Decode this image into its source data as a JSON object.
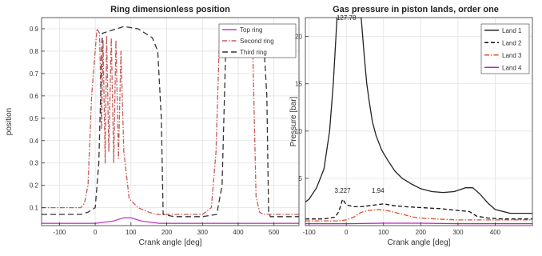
{
  "chart_data": [
    {
      "type": "line",
      "title": "Ring dimensionless position",
      "xlabel": "Crank angle [deg]",
      "ylabel": "position",
      "xlim": [
        -150,
        570
      ],
      "ylim": [
        0.02,
        0.95
      ],
      "xticks": [
        -100,
        0,
        100,
        200,
        300,
        400,
        500
      ],
      "yticks": [
        0.1,
        0.2,
        0.3,
        0.4,
        0.5,
        0.6,
        0.7,
        0.8,
        0.9
      ],
      "grid": true,
      "legend": "top-right",
      "series": [
        {
          "name": "Top ring",
          "color": "#c040c0",
          "dash": "",
          "x": [
            -150,
            0,
            50,
            80,
            100,
            130,
            180,
            360,
            420,
            570
          ],
          "y": [
            0.03,
            0.03,
            0.04,
            0.055,
            0.055,
            0.04,
            0.03,
            0.03,
            0.03,
            0.03
          ]
        },
        {
          "name": "Second ring",
          "color": "#c85a5a",
          "dash": "6 2 1.5 2",
          "x": [
            -150,
            -40,
            -30,
            -20,
            -10,
            5,
            12,
            18,
            22,
            28,
            32,
            38,
            45,
            52,
            58,
            65,
            72,
            80,
            95,
            120,
            150,
            170,
            200,
            240,
            300,
            325,
            338,
            348,
            380,
            410,
            440,
            445,
            450,
            460,
            470,
            500,
            550,
            570
          ],
          "y": [
            0.1,
            0.1,
            0.12,
            0.2,
            0.6,
            0.9,
            0.88,
            0.45,
            0.85,
            0.3,
            0.87,
            0.35,
            0.86,
            0.3,
            0.85,
            0.32,
            0.8,
            0.35,
            0.14,
            0.1,
            0.08,
            0.07,
            0.07,
            0.07,
            0.07,
            0.1,
            0.35,
            0.88,
            0.9,
            0.89,
            0.86,
            0.5,
            0.15,
            0.08,
            0.07,
            0.07,
            0.07,
            0.07
          ]
        },
        {
          "name": "Third ring",
          "color": "#333333",
          "dash": "7 4",
          "x": [
            -150,
            -40,
            -20,
            0,
            10,
            20,
            80,
            120,
            160,
            175,
            185,
            190,
            220,
            300,
            340,
            355,
            365,
            370,
            380,
            420,
            450,
            470,
            480,
            485,
            490,
            520,
            570
          ],
          "y": [
            0.07,
            0.07,
            0.08,
            0.1,
            0.3,
            0.88,
            0.91,
            0.9,
            0.86,
            0.8,
            0.5,
            0.07,
            0.06,
            0.06,
            0.07,
            0.2,
            0.8,
            0.91,
            0.92,
            0.91,
            0.9,
            0.88,
            0.6,
            0.08,
            0.06,
            0.06,
            0.06
          ]
        }
      ]
    },
    {
      "type": "line",
      "title": "Gas pressure in piston lands, order one",
      "xlabel": "Crank angle [deg]",
      "ylabel": "Pressure [bar]",
      "xlim": [
        -110,
        500
      ],
      "ylim": [
        0,
        22
      ],
      "xticks": [
        -100,
        0,
        100,
        200,
        300,
        400
      ],
      "yticks": [
        5,
        10,
        15,
        20
      ],
      "grid": true,
      "legend": "top-right",
      "annotations": [
        {
          "text": "127.78",
          "x": 0,
          "y": 21.5
        },
        {
          "text": "3.227",
          "x": -10,
          "y": 3.2
        },
        {
          "text": "1.94",
          "x": 85,
          "y": 3.2
        }
      ],
      "series": [
        {
          "name": "Land 1",
          "color": "#222222",
          "dash": "",
          "x": [
            -110,
            -100,
            -80,
            -60,
            -45,
            -35,
            -25,
            40,
            48,
            55,
            62,
            70,
            80,
            95,
            110,
            130,
            150,
            175,
            200,
            230,
            260,
            290,
            320,
            340,
            360,
            380,
            400,
            440,
            500
          ],
          "y": [
            2.5,
            2.8,
            4.0,
            6.0,
            10.0,
            15.0,
            22.0,
            22.0,
            18.0,
            15.0,
            13.0,
            11.0,
            9.5,
            8.0,
            7.0,
            5.8,
            5.0,
            4.4,
            3.9,
            3.6,
            3.5,
            3.6,
            4.0,
            4.0,
            3.3,
            2.4,
            1.7,
            1.3,
            1.3
          ]
        },
        {
          "name": "Land 2",
          "color": "#111111",
          "dash": "5 3",
          "x": [
            -110,
            -60,
            -30,
            -20,
            -10,
            0,
            20,
            40,
            60,
            80,
            100,
            130,
            160,
            200,
            250,
            300,
            330,
            350,
            380,
            420,
            460,
            500
          ],
          "y": [
            0.7,
            0.7,
            0.9,
            1.5,
            2.8,
            2.2,
            2.0,
            2.0,
            2.1,
            2.2,
            2.3,
            2.1,
            2.0,
            1.9,
            1.8,
            1.6,
            1.5,
            1.0,
            0.8,
            0.7,
            0.7,
            0.7
          ]
        },
        {
          "name": "Land 3",
          "color": "#e05030",
          "dash": "6 2 1.5 2",
          "x": [
            -110,
            -20,
            0,
            20,
            40,
            60,
            80,
            100,
            120,
            140,
            160,
            180,
            200,
            240,
            300,
            360,
            500
          ],
          "y": [
            0.5,
            0.5,
            0.6,
            0.9,
            1.4,
            1.6,
            1.7,
            1.65,
            1.5,
            1.3,
            1.1,
            0.9,
            0.8,
            0.7,
            0.6,
            0.6,
            0.6
          ]
        },
        {
          "name": "Land 4",
          "color": "#c020c0",
          "dash": "",
          "x": [
            -110,
            0,
            100,
            200,
            300,
            400,
            500
          ],
          "y": [
            0.2,
            0.2,
            0.25,
            0.25,
            0.2,
            0.2,
            0.2
          ]
        }
      ]
    }
  ]
}
